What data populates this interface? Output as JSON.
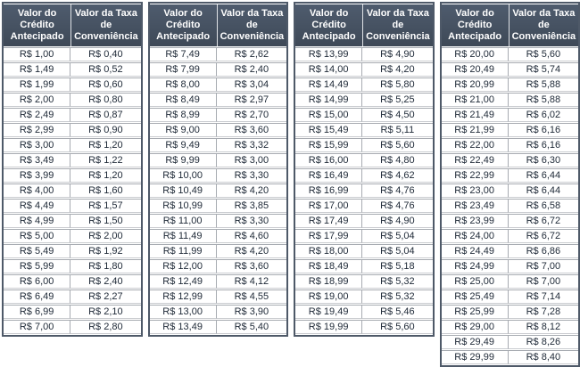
{
  "table": {
    "columns": [
      {
        "label": "Valor do Crédito Antecipado",
        "lines": [
          "Valor do",
          "Crédito",
          "Antecipado"
        ]
      },
      {
        "label": "Valor da Taxa de Conveniência",
        "lines": [
          "Valor da Taxa",
          "de",
          "Conveniência"
        ]
      }
    ],
    "groups": [
      {
        "rows": [
          [
            "R$ 1,00",
            "R$ 0,40"
          ],
          [
            "R$ 1,49",
            "R$ 0,52"
          ],
          [
            "R$ 1,99",
            "R$ 0,60"
          ],
          [
            "R$ 2,00",
            "R$ 0,80"
          ],
          [
            "R$ 2,49",
            "R$ 0,87"
          ],
          [
            "R$ 2,99",
            "R$ 0,90"
          ],
          [
            "R$ 3,00",
            "R$ 1,20"
          ],
          [
            "R$ 3,49",
            "R$ 1,22"
          ],
          [
            "R$ 3,99",
            "R$ 1,20"
          ],
          [
            "R$ 4,00",
            "R$ 1,60"
          ],
          [
            "R$ 4,49",
            "R$ 1,57"
          ],
          [
            "R$ 4,99",
            "R$ 1,50"
          ],
          [
            "R$ 5,00",
            "R$ 2,00"
          ],
          [
            "R$ 5,49",
            "R$ 1,92"
          ],
          [
            "R$ 5,99",
            "R$ 1,80"
          ],
          [
            "R$ 6,00",
            "R$ 2,40"
          ],
          [
            "R$ 6,49",
            "R$ 2,27"
          ],
          [
            "R$ 6,99",
            "R$ 2,10"
          ],
          [
            "R$ 7,00",
            "R$ 2,80"
          ]
        ]
      },
      {
        "rows": [
          [
            "R$ 7,49",
            "R$ 2,62"
          ],
          [
            "R$ 7,99",
            "R$ 2,40"
          ],
          [
            "R$ 8,00",
            "R$ 3,04"
          ],
          [
            "R$ 8,49",
            "R$ 2,97"
          ],
          [
            "R$ 8,99",
            "R$ 2,70"
          ],
          [
            "R$ 9,00",
            "R$ 3,60"
          ],
          [
            "R$ 9,49",
            "R$ 3,32"
          ],
          [
            "R$ 9,99",
            "R$ 3,00"
          ],
          [
            "R$ 10,00",
            "R$ 3,30"
          ],
          [
            "R$ 10,49",
            "R$ 4,20"
          ],
          [
            "R$ 10,99",
            "R$ 3,85"
          ],
          [
            "R$ 11,00",
            "R$ 3,30"
          ],
          [
            "R$ 11,49",
            "R$ 4,60"
          ],
          [
            "R$ 11,99",
            "R$ 4,20"
          ],
          [
            "R$ 12,00",
            "R$ 3,60"
          ],
          [
            "R$ 12,49",
            "R$ 4,12"
          ],
          [
            "R$ 12,99",
            "R$ 4,55"
          ],
          [
            "R$ 13,00",
            "R$ 3,90"
          ],
          [
            "R$ 13,49",
            "R$ 5,40"
          ]
        ]
      },
      {
        "rows": [
          [
            "R$ 13,99",
            "R$ 4,90"
          ],
          [
            "R$ 14,00",
            "R$ 4,20"
          ],
          [
            "R$ 14,49",
            "R$ 5,80"
          ],
          [
            "R$ 14,99",
            "R$ 5,25"
          ],
          [
            "R$ 15,00",
            "R$ 4,50"
          ],
          [
            "R$ 15,49",
            "R$ 5,11"
          ],
          [
            "R$ 15,99",
            "R$ 5,60"
          ],
          [
            "R$ 16,00",
            "R$ 4,80"
          ],
          [
            "R$ 16,49",
            "R$ 4,62"
          ],
          [
            "R$ 16,99",
            "R$ 4,76"
          ],
          [
            "R$ 17,00",
            "R$ 4,76"
          ],
          [
            "R$ 17,49",
            "R$ 4,90"
          ],
          [
            "R$ 17,99",
            "R$ 5,04"
          ],
          [
            "R$ 18,00",
            "R$ 5,04"
          ],
          [
            "R$ 18,49",
            "R$ 5,18"
          ],
          [
            "R$ 18,99",
            "R$ 5,32"
          ],
          [
            "R$ 19,00",
            "R$ 5,32"
          ],
          [
            "R$ 19,49",
            "R$ 5,46"
          ],
          [
            "R$ 19,99",
            "R$ 5,60"
          ]
        ]
      },
      {
        "rows": [
          [
            "R$ 20,00",
            "R$ 5,60"
          ],
          [
            "R$ 20,49",
            "R$ 5,74"
          ],
          [
            "R$ 20,99",
            "R$ 5,88"
          ],
          [
            "R$ 21,00",
            "R$ 5,88"
          ],
          [
            "R$ 21,49",
            "R$ 6,02"
          ],
          [
            "R$ 21,99",
            "R$ 6,16"
          ],
          [
            "R$ 22,00",
            "R$ 6,16"
          ],
          [
            "R$ 22,49",
            "R$ 6,30"
          ],
          [
            "R$ 22,99",
            "R$ 6,44"
          ],
          [
            "R$ 23,00",
            "R$ 6,44"
          ],
          [
            "R$ 23,49",
            "R$ 6,58"
          ],
          [
            "R$ 23,99",
            "R$ 6,72"
          ],
          [
            "R$ 24,00",
            "R$ 6,72"
          ],
          [
            "R$ 24,49",
            "R$ 6,86"
          ],
          [
            "R$ 24,99",
            "R$ 7,00"
          ],
          [
            "R$ 25,00",
            "R$ 7,00"
          ],
          [
            "R$ 25,49",
            "R$ 7,14"
          ],
          [
            "R$ 25,99",
            "R$ 7,28"
          ],
          [
            "R$ 29,00",
            "R$ 8,12"
          ],
          [
            "R$ 29,49",
            "R$ 8,26"
          ],
          [
            "R$ 29,99",
            "R$ 8,40"
          ]
        ]
      }
    ]
  },
  "colors": {
    "header_bg_top": "#4f5c6e",
    "header_bg_bottom": "#3e4957",
    "header_text": "#ffffff",
    "cell_text": "#1d2836",
    "cell_border": "#a7abb1",
    "frame_border": "#4e5968"
  }
}
